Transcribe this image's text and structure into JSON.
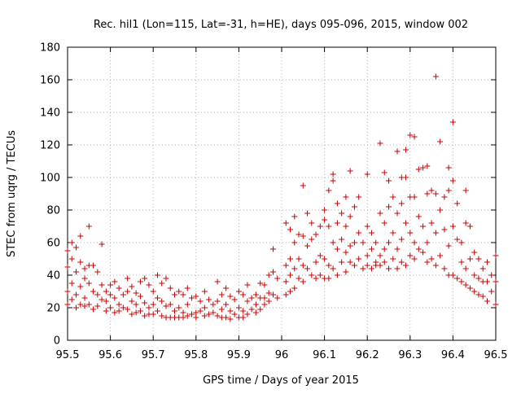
{
  "chart_data": {
    "type": "scatter",
    "title": "Rec. hil1 (Lon=115, Lat=-31, h=HE), days 095-096, 2015, window 002",
    "xlabel": "GPS time / Days of year 2015",
    "ylabel": "STEC from uqrg / TECUs",
    "xlim": [
      95.5,
      96.5
    ],
    "ylim": [
      0,
      180
    ],
    "xticks": [
      "95.5",
      "95.6",
      "95.7",
      "95.8",
      "95.9",
      "96",
      "96.1",
      "96.2",
      "96.3",
      "96.4",
      "96.5"
    ],
    "yticks": [
      "0",
      "20",
      "40",
      "60",
      "80",
      "100",
      "120",
      "140",
      "160",
      "180"
    ],
    "grid": true,
    "marker": "+",
    "color": "#cc0000",
    "series": [
      {
        "points": [
          [
            95.5,
            45
          ],
          [
            95.5,
            55
          ],
          [
            95.5,
            30
          ],
          [
            95.5,
            22
          ],
          [
            95.51,
            60
          ],
          [
            95.51,
            50
          ],
          [
            95.51,
            35
          ],
          [
            95.51,
            25
          ],
          [
            95.52,
            57
          ],
          [
            95.52,
            42
          ],
          [
            95.52,
            28
          ],
          [
            95.52,
            20
          ],
          [
            95.53,
            64
          ],
          [
            95.53,
            48
          ],
          [
            95.53,
            33
          ],
          [
            95.53,
            22
          ],
          [
            95.54,
            44
          ],
          [
            95.54,
            38
          ],
          [
            95.54,
            26
          ],
          [
            95.54,
            21
          ],
          [
            95.55,
            70
          ],
          [
            95.55,
            46
          ],
          [
            95.55,
            35
          ],
          [
            95.55,
            22
          ],
          [
            95.56,
            46
          ],
          [
            95.56,
            30
          ],
          [
            95.56,
            19
          ],
          [
            95.57,
            42
          ],
          [
            95.57,
            28
          ],
          [
            95.57,
            21
          ],
          [
            95.58,
            59
          ],
          [
            95.58,
            34
          ],
          [
            95.58,
            25
          ],
          [
            95.59,
            30
          ],
          [
            95.59,
            24
          ],
          [
            95.59,
            18
          ],
          [
            95.6,
            34
          ],
          [
            95.6,
            28
          ],
          [
            95.6,
            20
          ],
          [
            95.61,
            36
          ],
          [
            95.61,
            26
          ],
          [
            95.61,
            17
          ],
          [
            95.62,
            32
          ],
          [
            95.62,
            22
          ],
          [
            95.62,
            18
          ],
          [
            95.63,
            28
          ],
          [
            95.63,
            20
          ],
          [
            95.64,
            38
          ],
          [
            95.64,
            30
          ],
          [
            95.64,
            19
          ],
          [
            95.65,
            33
          ],
          [
            95.65,
            24
          ],
          [
            95.65,
            16
          ],
          [
            95.66,
            29
          ],
          [
            95.66,
            22
          ],
          [
            95.66,
            17
          ],
          [
            95.67,
            36
          ],
          [
            95.67,
            27
          ],
          [
            95.67,
            18
          ],
          [
            95.68,
            38
          ],
          [
            95.68,
            23
          ],
          [
            95.68,
            15
          ],
          [
            95.69,
            34
          ],
          [
            95.69,
            20
          ],
          [
            95.69,
            16
          ],
          [
            95.7,
            30
          ],
          [
            95.7,
            22
          ],
          [
            95.7,
            16
          ],
          [
            95.71,
            40
          ],
          [
            95.71,
            26
          ],
          [
            95.71,
            18
          ],
          [
            95.72,
            35
          ],
          [
            95.72,
            24
          ],
          [
            95.72,
            15
          ],
          [
            95.73,
            38
          ],
          [
            95.73,
            21
          ],
          [
            95.73,
            14
          ],
          [
            95.74,
            32
          ],
          [
            95.74,
            22
          ],
          [
            95.74,
            14
          ],
          [
            95.75,
            28
          ],
          [
            95.75,
            18
          ],
          [
            95.75,
            14
          ],
          [
            95.76,
            30
          ],
          [
            95.76,
            20
          ],
          [
            95.76,
            14
          ],
          [
            95.77,
            28
          ],
          [
            95.77,
            17
          ],
          [
            95.77,
            14
          ],
          [
            95.78,
            32
          ],
          [
            95.78,
            22
          ],
          [
            95.78,
            15
          ],
          [
            95.79,
            26
          ],
          [
            95.79,
            16
          ],
          [
            95.8,
            27
          ],
          [
            95.8,
            17
          ],
          [
            95.8,
            14
          ],
          [
            95.81,
            24
          ],
          [
            95.81,
            18
          ],
          [
            95.82,
            30
          ],
          [
            95.82,
            20
          ],
          [
            95.82,
            15
          ],
          [
            95.83,
            25
          ],
          [
            95.83,
            16
          ],
          [
            95.84,
            22
          ],
          [
            95.84,
            17
          ],
          [
            95.85,
            36
          ],
          [
            95.85,
            24
          ],
          [
            95.85,
            15
          ],
          [
            95.86,
            28
          ],
          [
            95.86,
            19
          ],
          [
            95.86,
            14
          ],
          [
            95.87,
            32
          ],
          [
            95.87,
            22
          ],
          [
            95.87,
            14
          ],
          [
            95.88,
            27
          ],
          [
            95.88,
            18
          ],
          [
            95.88,
            13
          ],
          [
            95.89,
            25
          ],
          [
            95.89,
            16
          ],
          [
            95.9,
            30
          ],
          [
            95.9,
            20
          ],
          [
            95.9,
            14
          ],
          [
            95.91,
            28
          ],
          [
            95.91,
            18
          ],
          [
            95.91,
            14
          ],
          [
            95.92,
            34
          ],
          [
            95.92,
            24
          ],
          [
            95.92,
            16
          ],
          [
            95.93,
            26
          ],
          [
            95.93,
            19
          ],
          [
            95.94,
            28
          ],
          [
            95.94,
            22
          ],
          [
            95.94,
            17
          ],
          [
            95.95,
            35
          ],
          [
            95.95,
            26
          ],
          [
            95.95,
            19
          ],
          [
            95.96,
            34
          ],
          [
            95.96,
            26
          ],
          [
            95.96,
            22
          ],
          [
            95.97,
            40
          ],
          [
            95.97,
            29
          ],
          [
            95.97,
            24
          ],
          [
            95.98,
            56
          ],
          [
            95.98,
            42
          ],
          [
            95.98,
            28
          ],
          [
            95.99,
            38
          ],
          [
            95.99,
            26
          ],
          [
            96.01,
            72
          ],
          [
            96.01,
            46
          ],
          [
            96.01,
            36
          ],
          [
            96.01,
            28
          ],
          [
            96.02,
            68
          ],
          [
            96.02,
            50
          ],
          [
            96.02,
            40
          ],
          [
            96.02,
            30
          ],
          [
            96.03,
            76
          ],
          [
            96.03,
            60
          ],
          [
            96.03,
            44
          ],
          [
            96.03,
            32
          ],
          [
            96.04,
            65
          ],
          [
            96.04,
            50
          ],
          [
            96.04,
            38
          ],
          [
            96.05,
            95
          ],
          [
            96.05,
            64
          ],
          [
            96.05,
            46
          ],
          [
            96.05,
            36
          ],
          [
            96.06,
            78
          ],
          [
            96.06,
            58
          ],
          [
            96.06,
            44
          ],
          [
            96.07,
            72
          ],
          [
            96.07,
            62
          ],
          [
            96.07,
            40
          ],
          [
            96.08,
            65
          ],
          [
            96.08,
            48
          ],
          [
            96.08,
            38
          ],
          [
            96.09,
            70
          ],
          [
            96.09,
            52
          ],
          [
            96.09,
            40
          ],
          [
            96.1,
            80
          ],
          [
            96.1,
            74
          ],
          [
            96.1,
            50
          ],
          [
            96.1,
            38
          ],
          [
            96.11,
            92
          ],
          [
            96.11,
            70
          ],
          [
            96.11,
            46
          ],
          [
            96.11,
            38
          ],
          [
            96.12,
            102
          ],
          [
            96.12,
            98
          ],
          [
            96.12,
            60
          ],
          [
            96.12,
            44
          ],
          [
            96.13,
            84
          ],
          [
            96.13,
            72
          ],
          [
            96.13,
            56
          ],
          [
            96.13,
            40
          ],
          [
            96.14,
            78
          ],
          [
            96.14,
            62
          ],
          [
            96.14,
            48
          ],
          [
            96.15,
            88
          ],
          [
            96.15,
            70
          ],
          [
            96.15,
            54
          ],
          [
            96.15,
            42
          ],
          [
            96.16,
            104
          ],
          [
            96.16,
            76
          ],
          [
            96.16,
            58
          ],
          [
            96.16,
            48
          ],
          [
            96.17,
            82
          ],
          [
            96.17,
            60
          ],
          [
            96.17,
            46
          ],
          [
            96.18,
            88
          ],
          [
            96.18,
            66
          ],
          [
            96.18,
            50
          ],
          [
            96.19,
            60
          ],
          [
            96.19,
            44
          ],
          [
            96.2,
            102
          ],
          [
            96.2,
            70
          ],
          [
            96.2,
            52
          ],
          [
            96.2,
            46
          ],
          [
            96.21,
            66
          ],
          [
            96.21,
            56
          ],
          [
            96.21,
            44
          ],
          [
            96.22,
            60
          ],
          [
            96.22,
            48
          ],
          [
            96.22,
            46
          ],
          [
            96.23,
            121
          ],
          [
            96.23,
            78
          ],
          [
            96.23,
            52
          ],
          [
            96.23,
            46
          ],
          [
            96.24,
            103
          ],
          [
            96.24,
            72
          ],
          [
            96.24,
            56
          ],
          [
            96.24,
            48
          ],
          [
            96.25,
            98
          ],
          [
            96.25,
            82
          ],
          [
            96.25,
            60
          ],
          [
            96.25,
            44
          ],
          [
            96.26,
            88
          ],
          [
            96.26,
            66
          ],
          [
            96.26,
            50
          ],
          [
            96.27,
            116
          ],
          [
            96.27,
            78
          ],
          [
            96.27,
            56
          ],
          [
            96.27,
            44
          ],
          [
            96.28,
            100
          ],
          [
            96.28,
            84
          ],
          [
            96.28,
            62
          ],
          [
            96.28,
            48
          ],
          [
            96.29,
            117
          ],
          [
            96.29,
            100
          ],
          [
            96.29,
            72
          ],
          [
            96.29,
            46
          ],
          [
            96.3,
            126
          ],
          [
            96.3,
            88
          ],
          [
            96.3,
            66
          ],
          [
            96.3,
            52
          ],
          [
            96.31,
            125
          ],
          [
            96.31,
            88
          ],
          [
            96.31,
            60
          ],
          [
            96.31,
            50
          ],
          [
            96.32,
            105
          ],
          [
            96.32,
            76
          ],
          [
            96.32,
            56
          ],
          [
            96.33,
            106
          ],
          [
            96.33,
            70
          ],
          [
            96.33,
            54
          ],
          [
            96.34,
            107
          ],
          [
            96.34,
            90
          ],
          [
            96.34,
            60
          ],
          [
            96.34,
            48
          ],
          [
            96.35,
            92
          ],
          [
            96.35,
            72
          ],
          [
            96.35,
            50
          ],
          [
            96.36,
            162
          ],
          [
            96.36,
            90
          ],
          [
            96.36,
            66
          ],
          [
            96.36,
            46
          ],
          [
            96.37,
            122
          ],
          [
            96.37,
            80
          ],
          [
            96.37,
            52
          ],
          [
            96.38,
            88
          ],
          [
            96.38,
            68
          ],
          [
            96.38,
            44
          ],
          [
            96.39,
            106
          ],
          [
            96.39,
            92
          ],
          [
            96.39,
            58
          ],
          [
            96.39,
            40
          ],
          [
            96.4,
            134
          ],
          [
            96.4,
            98
          ],
          [
            96.4,
            70
          ],
          [
            96.4,
            40
          ],
          [
            96.41,
            84
          ],
          [
            96.41,
            62
          ],
          [
            96.41,
            38
          ],
          [
            96.42,
            60
          ],
          [
            96.42,
            48
          ],
          [
            96.42,
            36
          ],
          [
            96.43,
            92
          ],
          [
            96.43,
            72
          ],
          [
            96.43,
            44
          ],
          [
            96.43,
            34
          ],
          [
            96.44,
            70
          ],
          [
            96.44,
            50
          ],
          [
            96.44,
            32
          ],
          [
            96.45,
            54
          ],
          [
            96.45,
            40
          ],
          [
            96.45,
            30
          ],
          [
            96.46,
            50
          ],
          [
            96.46,
            38
          ],
          [
            96.46,
            28
          ],
          [
            96.47,
            44
          ],
          [
            96.47,
            36
          ],
          [
            96.47,
            27
          ],
          [
            96.48,
            48
          ],
          [
            96.48,
            36
          ],
          [
            96.48,
            24
          ],
          [
            96.49,
            40
          ],
          [
            96.49,
            30
          ],
          [
            96.5,
            52
          ],
          [
            96.5,
            36
          ],
          [
            96.5,
            22
          ]
        ]
      }
    ]
  }
}
